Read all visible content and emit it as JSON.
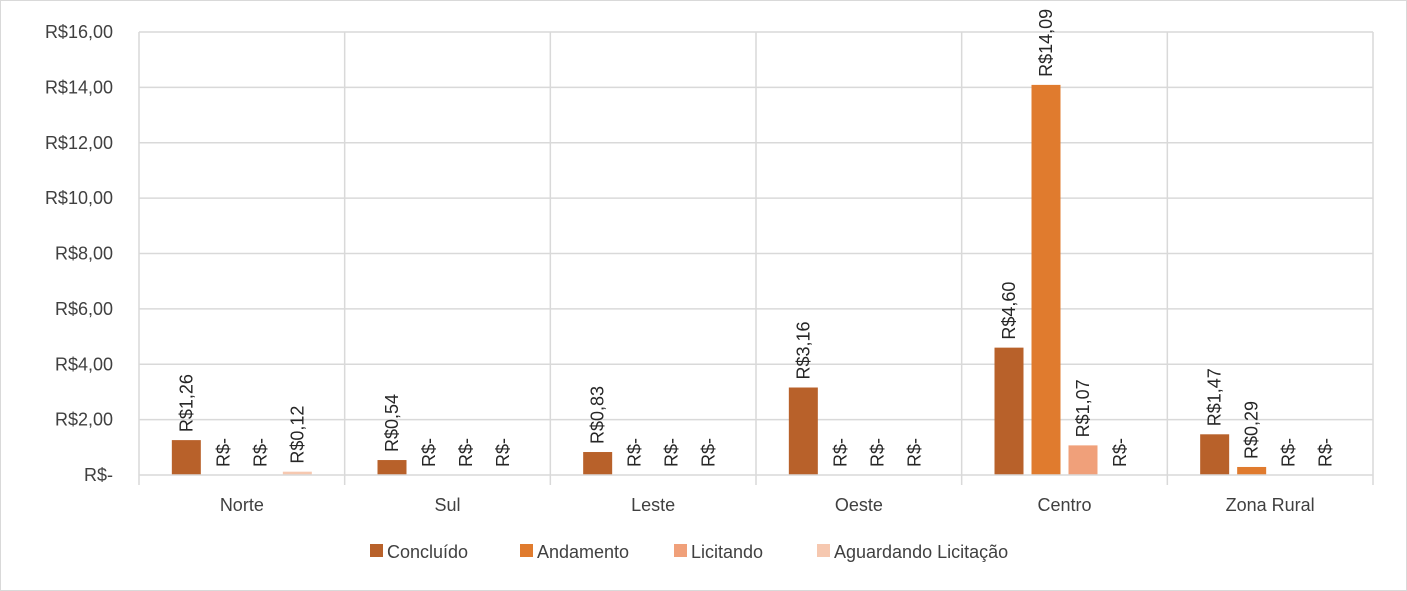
{
  "chart_data": {
    "type": "bar",
    "title": "",
    "xlabel": "",
    "ylabel": "",
    "categories": [
      "Norte",
      "Sul",
      "Leste",
      "Oeste",
      "Centro",
      "Zona Rural"
    ],
    "ylim": [
      0,
      16
    ],
    "y_ticks": [
      {
        "value": 0,
        "label": "R$-"
      },
      {
        "value": 2,
        "label": "R$2,00"
      },
      {
        "value": 4,
        "label": "R$4,00"
      },
      {
        "value": 6,
        "label": "R$6,00"
      },
      {
        "value": 8,
        "label": "R$8,00"
      },
      {
        "value": 10,
        "label": "R$10,00"
      },
      {
        "value": 12,
        "label": "R$12,00"
      },
      {
        "value": 14,
        "label": "R$14,00"
      },
      {
        "value": 16,
        "label": "R$16,00"
      }
    ],
    "grid": true,
    "legend_position": "bottom",
    "series": [
      {
        "name": "Concluído",
        "color": "#B8612A",
        "values": [
          1.26,
          0.54,
          0.83,
          3.16,
          4.6,
          1.47
        ],
        "labels": [
          "R$1,26",
          "R$0,54",
          "R$0,83",
          "R$3,16",
          "R$4,60",
          "R$1,47"
        ]
      },
      {
        "name": "Andamento",
        "color": "#E07B2E",
        "values": [
          0,
          0,
          0,
          0,
          14.09,
          0.29
        ],
        "labels": [
          "R$-",
          "R$-",
          "R$-",
          "R$-",
          "R$14,09",
          "R$0,29"
        ]
      },
      {
        "name": "Licitando",
        "color": "#F0A07A",
        "values": [
          0,
          0,
          0,
          0,
          1.07,
          0
        ],
        "labels": [
          "R$-",
          "R$-",
          "R$-",
          "R$-",
          "R$1,07",
          "R$-"
        ]
      },
      {
        "name": "Aguardando Licitação",
        "color": "#F6C8B0",
        "values": [
          0.12,
          0,
          0,
          0,
          0,
          0
        ],
        "labels": [
          "R$0,12",
          "R$-",
          "R$-",
          "R$-",
          "R$-",
          "R$-"
        ]
      }
    ]
  }
}
